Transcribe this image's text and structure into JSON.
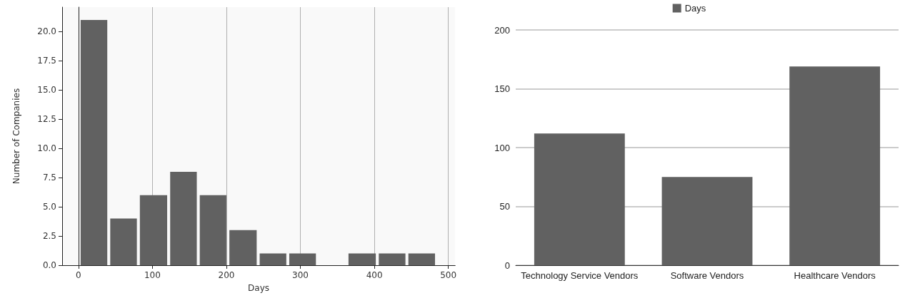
{
  "chart_data": [
    {
      "type": "histogram",
      "xlabel": "Days",
      "ylabel": "Number of Companies",
      "color": "#616161",
      "bins": [
        1,
        41,
        81,
        122,
        162,
        202,
        243,
        283,
        323,
        363,
        404,
        444,
        484
      ],
      "values": [
        21,
        4,
        6,
        8,
        6,
        3,
        1,
        1,
        0,
        1,
        1,
        1
      ],
      "xlim": [
        -22,
        509
      ],
      "xticks": [
        0,
        100,
        200,
        300,
        400,
        500
      ],
      "ylim": [
        0,
        22.1
      ],
      "yticks": [
        {
          "value": 0,
          "label": "0.0"
        },
        2.5,
        {
          "value": 5,
          "label": "5.0"
        },
        7.5,
        {
          "value": 10,
          "label": "10.0"
        },
        12.5,
        {
          "value": 15,
          "label": "15.0"
        },
        17.5,
        {
          "value": 20,
          "label": "20.0"
        }
      ],
      "grid": "x",
      "legend": false
    },
    {
      "type": "bar",
      "categories": [
        "Technology Service Vendors",
        "Software Vendors",
        "Healthcare Vendors"
      ],
      "series": [
        {
          "name": "Days",
          "color": "#616161",
          "values": [
            112,
            75,
            169
          ]
        }
      ],
      "ylim": [
        0,
        200
      ],
      "yticks": [
        0,
        50,
        100,
        150,
        200
      ],
      "grid": "y",
      "legend": "top"
    }
  ]
}
